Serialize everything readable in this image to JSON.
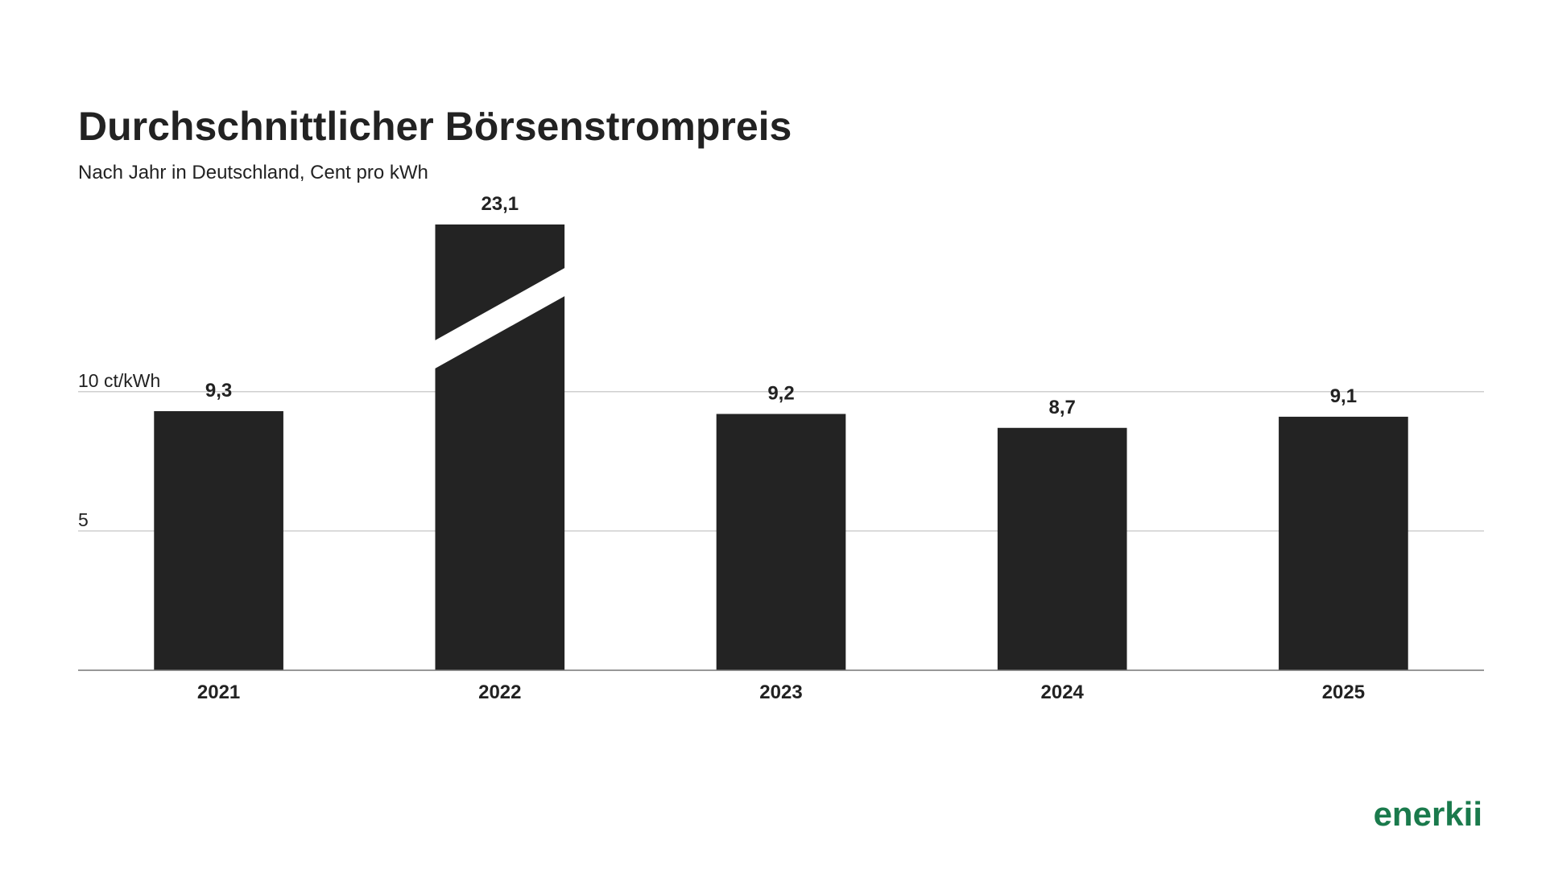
{
  "chart_data": {
    "type": "bar",
    "title": "Durchschnittlicher Börsenstrompreis",
    "subtitle": "Nach Jahr in Deutschland, Cent pro kWh",
    "categories": [
      "2021",
      "2022",
      "2023",
      "2024",
      "2025"
    ],
    "values": [
      9.3,
      23.1,
      9.2,
      8.7,
      9.1
    ],
    "value_labels": [
      "9,3",
      "23,1",
      "9,2",
      "8,7",
      "9,1"
    ],
    "color": "#232323",
    "ylim": [
      0,
      16
    ],
    "yticks": [
      5,
      {
        "value": 10,
        "label": "10 ct/kWh"
      }
    ],
    "grid": true
  },
  "brand": "enerkii"
}
